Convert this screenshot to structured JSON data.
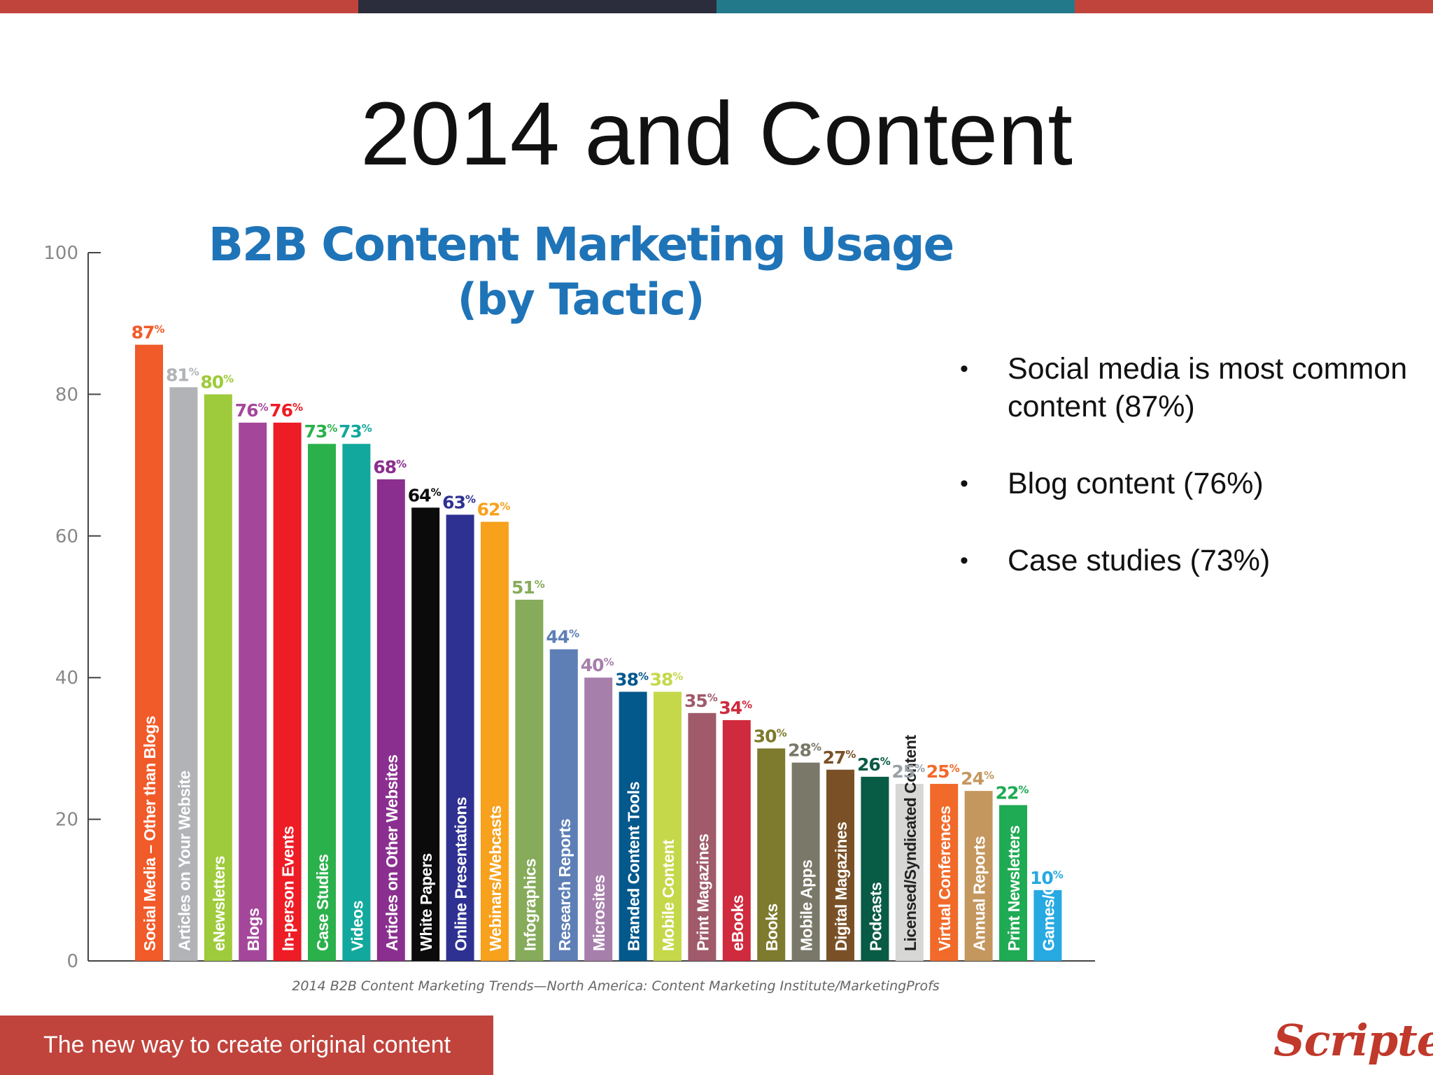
{
  "slide": {
    "title": "2014 and Content",
    "bullets": [
      "Social media is most common content (87%)",
      "Blog content (76%)",
      "Case studies (73%)"
    ],
    "footer": "The new way to create original content",
    "brand": "Scripted",
    "colors": {
      "accent": "#c0443c",
      "top_bar": [
        "#c0443c",
        "#2c2d3c",
        "#22798a",
        "#c0443c"
      ]
    }
  },
  "chart_data": {
    "type": "bar",
    "title": "B2B Content Marketing Usage",
    "subtitle": "(by Tactic)",
    "source": "2014 B2B Content Marketing Trends—North America: Content Marketing Institute/MarketingProfs",
    "xlabel": "",
    "ylabel": "",
    "ylim": [
      0,
      100
    ],
    "yticks": [
      0,
      20,
      40,
      60,
      80,
      100
    ],
    "grid": false,
    "value_suffix": "%",
    "categories": [
      "Social Media – Other than Blogs",
      "Articles on Your Website",
      "eNewsletters",
      "Blogs",
      "In-person Events",
      "Case Studies",
      "Videos",
      "Articles on Other Websites",
      "White Papers",
      "Online Presentations",
      "Webinars/Webcasts",
      "Infographics",
      "Research Reports",
      "Microsites",
      "Branded Content Tools",
      "Mobile Content",
      "Print Magazines",
      "eBooks",
      "Books",
      "Mobile Apps",
      "Digital Magazines",
      "Podcasts",
      "Licensed/Syndicated Content",
      "Virtual Conferences",
      "Annual Reports",
      "Print Newsletters",
      "Games/Gamification"
    ],
    "values": [
      87,
      81,
      80,
      76,
      76,
      73,
      73,
      68,
      64,
      63,
      62,
      51,
      44,
      40,
      38,
      38,
      35,
      34,
      30,
      28,
      27,
      26,
      25,
      25,
      24,
      22,
      10
    ],
    "colors": [
      "#f15a29",
      "#b1b3b6",
      "#9ecb3b",
      "#a4479b",
      "#ee1c25",
      "#2bb14b",
      "#12a89d",
      "#8a2f8f",
      "#0b0b0b",
      "#2e3192",
      "#f8a11d",
      "#86ab5a",
      "#5d7fb6",
      "#a77fab",
      "#03588c",
      "#c5d84a",
      "#a05a6a",
      "#cf2a3e",
      "#7e7a2e",
      "#7a7868",
      "#7a5127",
      "#085b45",
      "#d7d8d6",
      "#f26a2a",
      "#c4975f",
      "#1fab53",
      "#27a9e1"
    ]
  }
}
